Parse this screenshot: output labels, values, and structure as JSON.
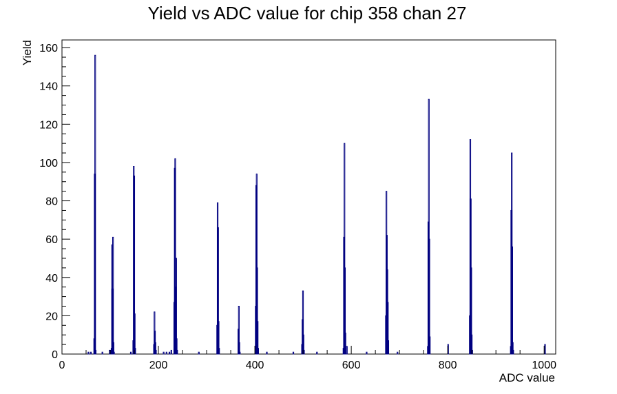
{
  "chart_data": {
    "type": "bar",
    "title": "Yield vs ADC value for chip 358 chan 27",
    "xlabel": "ADC value",
    "ylabel": "Yield",
    "xlim": [
      0,
      1024
    ],
    "ylim": [
      0,
      164
    ],
    "grid": false,
    "legend": "none",
    "line_color": "#000080",
    "x_ticks": [
      0,
      200,
      400,
      600,
      800,
      1000
    ],
    "y_ticks": [
      0,
      20,
      40,
      60,
      80,
      100,
      120,
      140,
      160
    ],
    "series": [
      {
        "values": [
          [
            54,
            1
          ],
          [
            59,
            1
          ],
          [
            66,
            8
          ],
          [
            67,
            94
          ],
          [
            68,
            156
          ],
          [
            69,
            2
          ],
          [
            83,
            1
          ],
          [
            98,
            2
          ],
          [
            101,
            2
          ],
          [
            102,
            3
          ],
          [
            103,
            57
          ],
          [
            104,
            34
          ],
          [
            105,
            61
          ],
          [
            106,
            6
          ],
          [
            107,
            1
          ],
          [
            142,
            1
          ],
          [
            147,
            7
          ],
          [
            148,
            98
          ],
          [
            149,
            93
          ],
          [
            150,
            21
          ],
          [
            151,
            3
          ],
          [
            190,
            5
          ],
          [
            191,
            22
          ],
          [
            192,
            12
          ],
          [
            193,
            6
          ],
          [
            194,
            2
          ],
          [
            210,
            1
          ],
          [
            216,
            1
          ],
          [
            222,
            1
          ],
          [
            226,
            2
          ],
          [
            232,
            27
          ],
          [
            233,
            97
          ],
          [
            234,
            102
          ],
          [
            235,
            35
          ],
          [
            236,
            50
          ],
          [
            237,
            8
          ],
          [
            238,
            2
          ],
          [
            283,
            1
          ],
          [
            321,
            15
          ],
          [
            322,
            79
          ],
          [
            323,
            66
          ],
          [
            324,
            17
          ],
          [
            325,
            3
          ],
          [
            365,
            13
          ],
          [
            366,
            25
          ],
          [
            367,
            6
          ],
          [
            368,
            1
          ],
          [
            401,
            25
          ],
          [
            402,
            88
          ],
          [
            403,
            94
          ],
          [
            404,
            45
          ],
          [
            405,
            17
          ],
          [
            406,
            3
          ],
          [
            424,
            1
          ],
          [
            479,
            1
          ],
          [
            497,
            5
          ],
          [
            498,
            18
          ],
          [
            499,
            33
          ],
          [
            500,
            10
          ],
          [
            501,
            2
          ],
          [
            528,
            1
          ],
          [
            583,
            3
          ],
          [
            584,
            61
          ],
          [
            585,
            110
          ],
          [
            586,
            45
          ],
          [
            587,
            11
          ],
          [
            590,
            4
          ],
          [
            631,
            1
          ],
          [
            671,
            20
          ],
          [
            672,
            85
          ],
          [
            673,
            62
          ],
          [
            674,
            44
          ],
          [
            675,
            27
          ],
          [
            676,
            7
          ],
          [
            695,
            1
          ],
          [
            758,
            4
          ],
          [
            759,
            69
          ],
          [
            760,
            133
          ],
          [
            761,
            60
          ],
          [
            762,
            9
          ],
          [
            800,
            5
          ],
          [
            845,
            20
          ],
          [
            846,
            112
          ],
          [
            847,
            81
          ],
          [
            848,
            45
          ],
          [
            849,
            10
          ],
          [
            850,
            2
          ],
          [
            930,
            4
          ],
          [
            931,
            75
          ],
          [
            932,
            105
          ],
          [
            933,
            56
          ],
          [
            934,
            6
          ],
          [
            935,
            2
          ],
          [
            1001,
            5
          ]
        ]
      }
    ]
  }
}
